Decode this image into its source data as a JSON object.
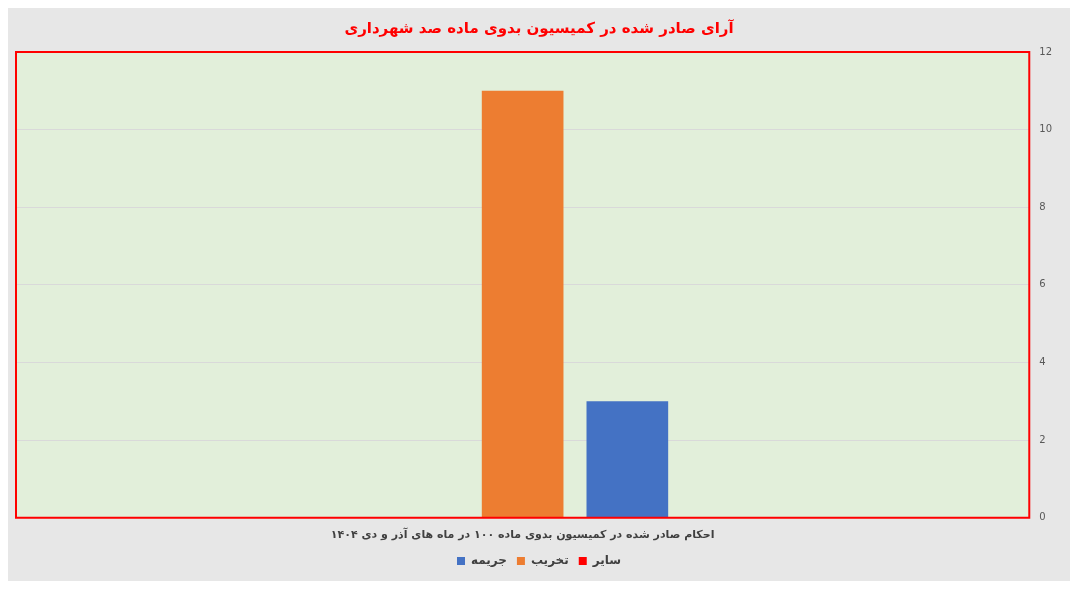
{
  "chart_data": {
    "type": "bar",
    "title": "آرای صادر شده در کمیسیون بدوی ماده صد شهرداری",
    "categories": [
      "احکام صادر شده در کمیسیون بدوی ماده ۱۰۰ در ماه های آذر و دی ۱۴۰۴"
    ],
    "series": [
      {
        "name": "سایر",
        "color": "#ff0000",
        "values": [
          0
        ]
      },
      {
        "name": "تخریب",
        "color": "#ed7d31",
        "values": [
          11
        ]
      },
      {
        "name": "جریمه",
        "color": "#4472c4",
        "values": [
          3
        ]
      }
    ],
    "ylim": [
      0,
      12
    ],
    "yticks": [
      0,
      2,
      4,
      6,
      8,
      10,
      12
    ],
    "grid": "y",
    "legend": "bottom"
  }
}
